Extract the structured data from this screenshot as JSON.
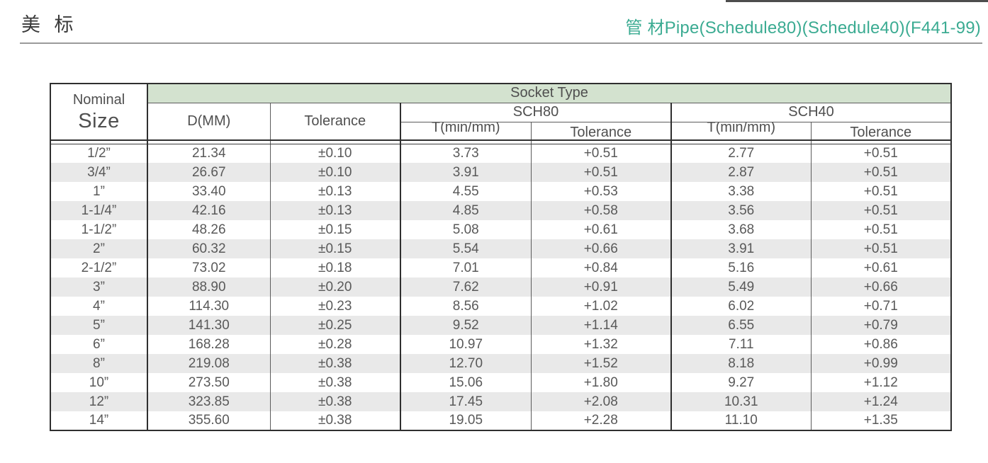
{
  "page": {
    "title": "美 标",
    "subtitle": "管 材Pipe(Schedule80)(Schedule40)(F441-99)"
  },
  "colors": {
    "subtitle_green": "#3bab92",
    "socket_band_green": "#d3e2cf",
    "stripe_gray": "#e9e9e9",
    "text_gray": "#595959",
    "border_dark": "#2f2f2f"
  },
  "table": {
    "header": {
      "nominal_line1": "Nominal",
      "nominal_line2": "Size",
      "socket_type": "Socket Type",
      "d_mm": "D(MM)",
      "tolerance": "Tolerance",
      "sch80": "SCH80",
      "sch40": "SCH40",
      "t_min_mm": "T(min/mm)",
      "sub_tolerance": "Tolerance"
    },
    "columns": [
      "Nominal Size",
      "D(MM)",
      "Tolerance",
      "SCH80 T(min/mm)",
      "SCH80 Tolerance",
      "SCH40 T(min/mm)",
      "SCH40 Tolerance"
    ],
    "rows": [
      [
        "1/2”",
        "21.34",
        "±0.10",
        "3.73",
        "+0.51",
        "2.77",
        "+0.51"
      ],
      [
        "3/4”",
        "26.67",
        "±0.10",
        "3.91",
        "+0.51",
        "2.87",
        "+0.51"
      ],
      [
        "1”",
        "33.40",
        "±0.13",
        "4.55",
        "+0.53",
        "3.38",
        "+0.51"
      ],
      [
        "1-1/4”",
        "42.16",
        "±0.13",
        "4.85",
        "+0.58",
        "3.56",
        "+0.51"
      ],
      [
        "1-1/2”",
        "48.26",
        "±0.15",
        "5.08",
        "+0.61",
        "3.68",
        "+0.51"
      ],
      [
        "2”",
        "60.32",
        "±0.15",
        "5.54",
        "+0.66",
        "3.91",
        "+0.51"
      ],
      [
        "2-1/2”",
        "73.02",
        "±0.18",
        "7.01",
        "+0.84",
        "5.16",
        "+0.61"
      ],
      [
        "3”",
        "88.90",
        "±0.20",
        "7.62",
        "+0.91",
        "5.49",
        "+0.66"
      ],
      [
        "4”",
        "114.30",
        "±0.23",
        "8.56",
        "+1.02",
        "6.02",
        "+0.71"
      ],
      [
        "5”",
        "141.30",
        "±0.25",
        "9.52",
        "+1.14",
        "6.55",
        "+0.79"
      ],
      [
        "6”",
        "168.28",
        "±0.28",
        "10.97",
        "+1.32",
        "7.11",
        "+0.86"
      ],
      [
        "8”",
        "219.08",
        "±0.38",
        "12.70",
        "+1.52",
        "8.18",
        "+0.99"
      ],
      [
        "10”",
        "273.50",
        "±0.38",
        "15.06",
        "+1.80",
        "9.27",
        "+1.12"
      ],
      [
        "12”",
        "323.85",
        "±0.38",
        "17.45",
        "+2.08",
        "10.31",
        "+1.24"
      ],
      [
        "14”",
        "355.60",
        "±0.38",
        "19.05",
        "+2.28",
        "11.10",
        "+1.35"
      ]
    ]
  }
}
